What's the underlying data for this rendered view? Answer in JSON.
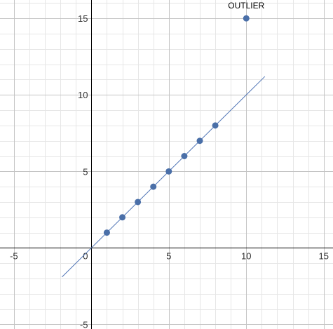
{
  "chart_data": {
    "type": "scatter",
    "title": "",
    "xlabel": "",
    "ylabel": "",
    "xlim": [
      -5.9,
      15.6
    ],
    "ylim": [
      -5.3,
      16.2
    ],
    "grid": true,
    "x_ticks": [
      "-5",
      "0",
      "5",
      "10",
      "15"
    ],
    "y_ticks": [
      "-5",
      "5",
      "10",
      "15"
    ],
    "origin_label": "0",
    "colors": {
      "points": "#4a6fa8",
      "line": "#4f74b5",
      "axis": "#000000",
      "grid_major": "#c4c4c4",
      "grid_minor": "#e6e6e6"
    },
    "series": [
      {
        "values": [
          [
            1,
            1
          ],
          [
            2,
            2
          ],
          [
            3,
            3
          ],
          [
            4,
            4
          ],
          [
            5,
            5
          ],
          [
            6,
            6
          ],
          [
            7,
            7
          ],
          [
            8,
            8
          ],
          [
            10,
            15
          ]
        ]
      }
    ],
    "trend_line": {
      "slope": 1,
      "intercept": 0,
      "x_range": [
        -1.9,
        11.2
      ]
    },
    "annotations": [
      {
        "text": "OUTLIER",
        "x": 10,
        "y": 15
      }
    ]
  }
}
